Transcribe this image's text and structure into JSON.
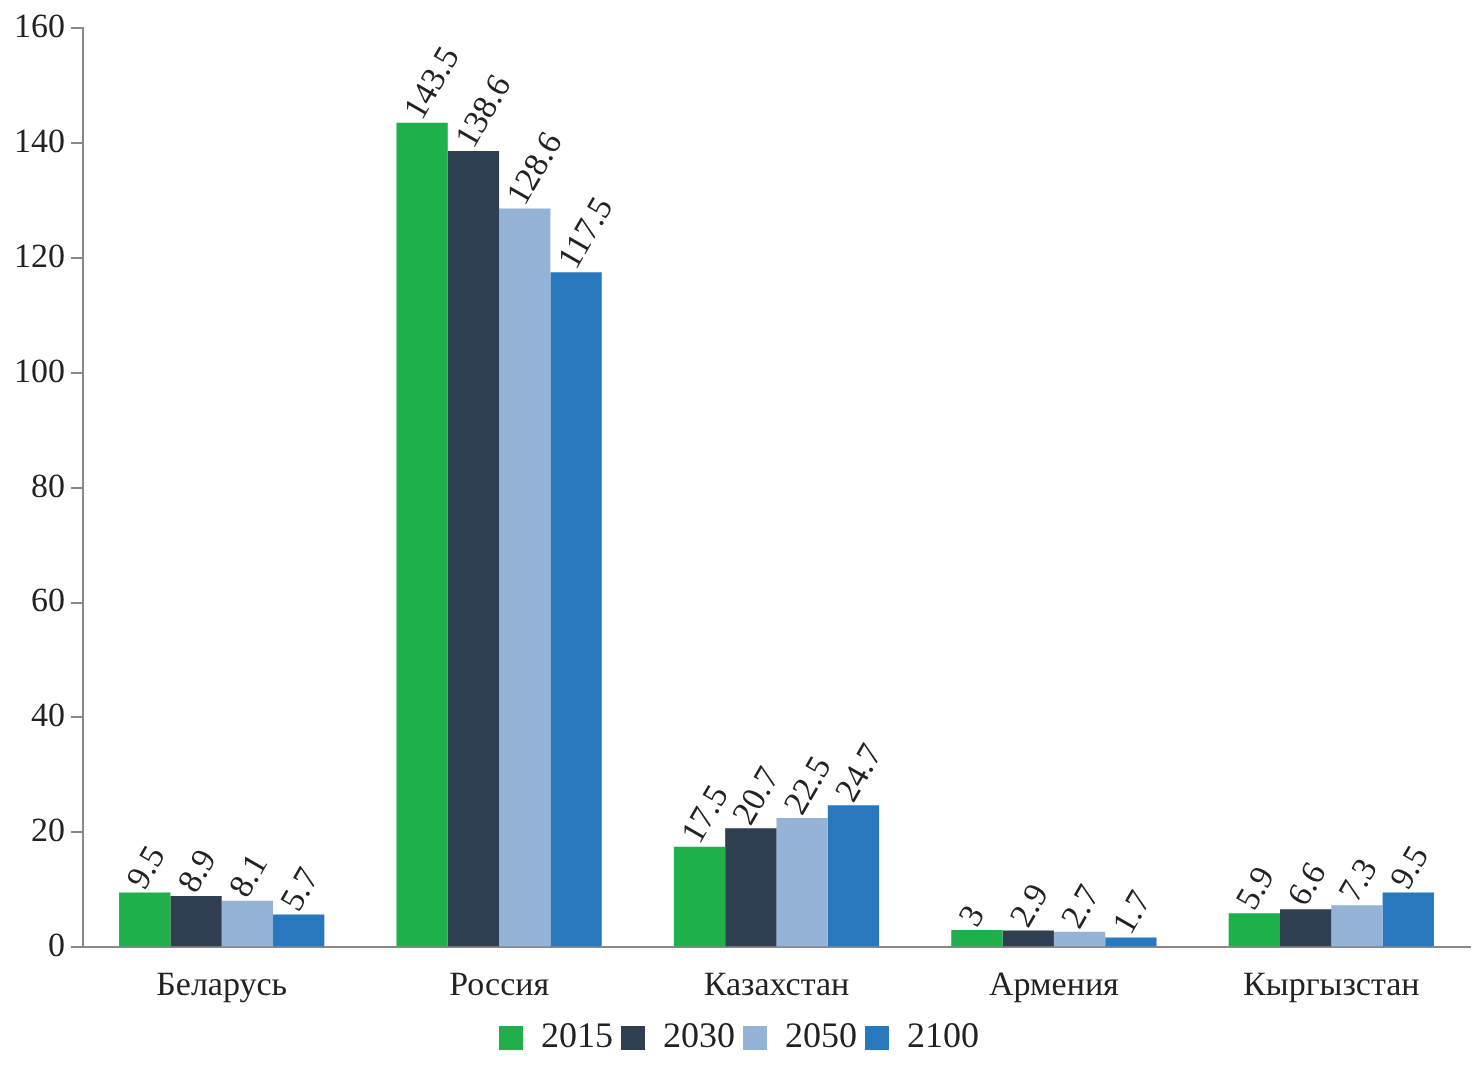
{
  "chart_data": {
    "type": "bar",
    "categories": [
      "Беларусь",
      "Россия",
      "Казахстан",
      "Армения",
      "Кыргызстан"
    ],
    "series": [
      {
        "name": "2015",
        "color": "#1fb04b",
        "values": [
          9.5,
          143.5,
          17.5,
          3,
          5.9
        ]
      },
      {
        "name": "2030",
        "color": "#2f3e50",
        "values": [
          8.9,
          138.6,
          20.7,
          2.9,
          6.6
        ]
      },
      {
        "name": "2050",
        "color": "#95b3d7",
        "values": [
          8.1,
          128.6,
          22.5,
          2.7,
          7.3
        ]
      },
      {
        "name": "2100",
        "color": "#2878be",
        "values": [
          5.7,
          117.5,
          24.7,
          1.7,
          9.5
        ]
      }
    ],
    "ylim": [
      0,
      160
    ],
    "yticks": [
      0,
      20,
      40,
      60,
      80,
      100,
      120,
      140,
      160
    ],
    "grid": false,
    "legend": "bottom",
    "data_labels": true
  }
}
